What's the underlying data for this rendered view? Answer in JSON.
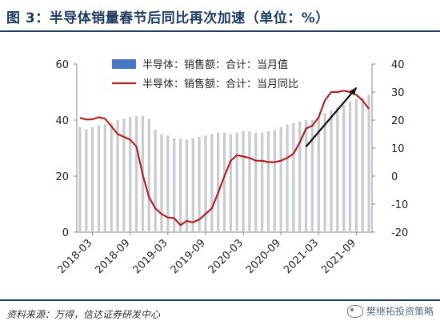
{
  "figure": {
    "title": "图 3：半导体销量春节后同比再次加速（单位：%）",
    "source": "资料来源：万得，信达证券研发中心",
    "watermark": "樊继拓投资策略"
  },
  "chart_data": {
    "type": "bar+line",
    "grid": false,
    "legend_position": "top",
    "left_axis": {
      "ticks": [
        0,
        20,
        40,
        60
      ],
      "ylim": [
        0,
        60
      ]
    },
    "right_axis": {
      "ticks": [
        -20,
        -10,
        0,
        10,
        20,
        30,
        40
      ],
      "ylim": [
        -20,
        40
      ]
    },
    "x_tick_labels": [
      "2018-03",
      "2018-09",
      "2019-03",
      "2019-09",
      "2020-03",
      "2020-09",
      "2021-03",
      "2021-09"
    ],
    "months": [
      "2018-01",
      "2018-02",
      "2018-03",
      "2018-04",
      "2018-05",
      "2018-06",
      "2018-07",
      "2018-08",
      "2018-09",
      "2018-10",
      "2018-11",
      "2018-12",
      "2019-01",
      "2019-02",
      "2019-03",
      "2019-04",
      "2019-05",
      "2019-06",
      "2019-07",
      "2019-08",
      "2019-09",
      "2019-10",
      "2019-11",
      "2019-12",
      "2020-01",
      "2020-02",
      "2020-03",
      "2020-04",
      "2020-05",
      "2020-06",
      "2020-07",
      "2020-08",
      "2020-09",
      "2020-10",
      "2020-11",
      "2020-12",
      "2021-01",
      "2021-02",
      "2021-03",
      "2021-04",
      "2021-05",
      "2021-06",
      "2021-07",
      "2021-08",
      "2021-09",
      "2021-10",
      "2021-11"
    ],
    "series": [
      {
        "name": "半导体：销售额：合计：当月值",
        "type": "bar",
        "axis": "left",
        "color": "#4a78c9",
        "values": [
          37.5,
          36.8,
          37.5,
          38.2,
          38.5,
          39.0,
          40.0,
          40.5,
          41.2,
          41.5,
          41.5,
          40.5,
          36.5,
          35.0,
          34.5,
          33.5,
          33.5,
          33.0,
          33.5,
          34.0,
          34.5,
          35.0,
          35.5,
          35.5,
          35.0,
          35.5,
          36.0,
          36.0,
          35.5,
          35.5,
          36.0,
          36.5,
          37.5,
          38.5,
          39.0,
          39.5,
          40.0,
          40.0,
          41.0,
          42.5,
          43.5,
          44.5,
          45.5,
          46.5,
          47.5,
          48.0,
          49.0
        ]
      },
      {
        "name": "半导体：销售额：合计：当月同比",
        "type": "line",
        "axis": "right",
        "color": "#b22222",
        "values": [
          20.8,
          20.2,
          20.3,
          21.0,
          20.5,
          17.8,
          15.0,
          14.0,
          13.0,
          10.5,
          0.5,
          -7.5,
          -11.5,
          -13.5,
          -14.8,
          -15.0,
          -17.5,
          -16.0,
          -16.5,
          -15.5,
          -13.5,
          -11.5,
          -6.0,
          0.0,
          5.5,
          7.5,
          7.0,
          6.5,
          5.5,
          5.5,
          5.0,
          5.0,
          5.5,
          6.5,
          8.0,
          12.0,
          17.0,
          18.0,
          21.0,
          27.0,
          30.0,
          30.0,
          30.5,
          30.0,
          29.0,
          27.0,
          24.0
        ]
      }
    ],
    "annotation": {
      "type": "arrow",
      "from_month": "2021-01",
      "from_value": 10.5,
      "to_month": "2021-09",
      "to_value": 31.5,
      "axis": "right"
    }
  }
}
